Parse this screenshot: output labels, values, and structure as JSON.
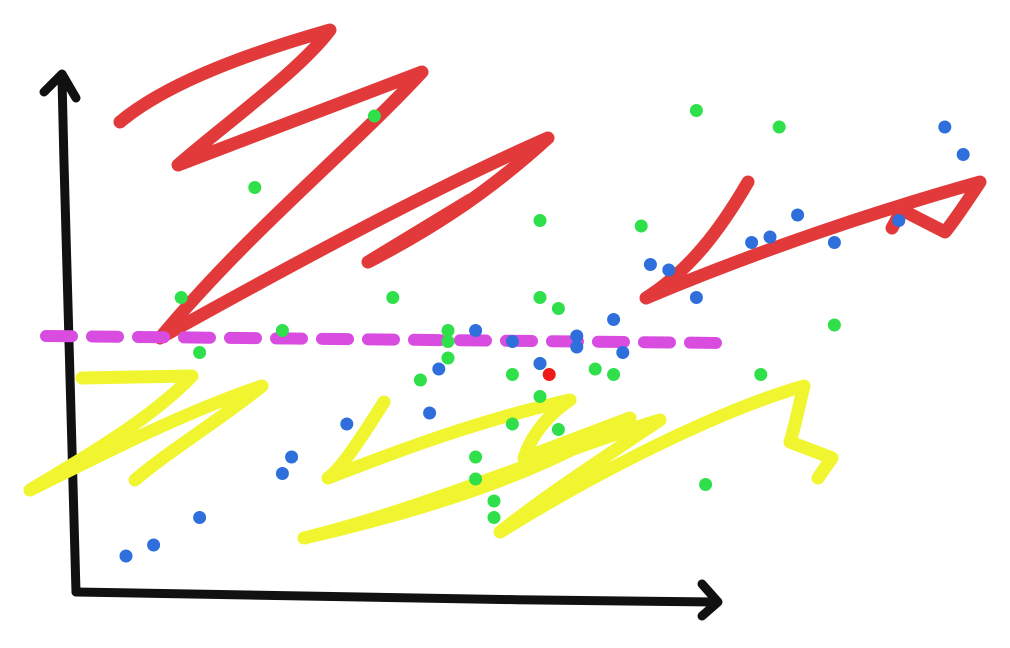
{
  "colors": {
    "background": "#ffffff",
    "axes": "#111111",
    "high_scribble": "#e23a3a",
    "low_scribble": "#f0f530",
    "threshold_line": "#d94ce0",
    "green_points": "#2fe04a",
    "blue_points": "#2f6fdc",
    "highlight_point": "#ee1a1a"
  },
  "icons": {
    "x_axis_arrowhead": "arrowhead-right-icon",
    "y_axis_arrowhead": "arrowhead-up-icon"
  },
  "chart_data": {
    "type": "scatter",
    "title": "",
    "xlabel": "",
    "ylabel": "",
    "legend": "none",
    "grid": false,
    "xlim": [
      0,
      100
    ],
    "ylim": [
      0,
      100
    ],
    "threshold": {
      "style": "dashed",
      "y": 48
    },
    "series": [
      {
        "color": "green",
        "x": [
          11,
          19,
          22,
          32,
          34,
          37,
          40,
          40,
          40,
          43,
          43,
          47,
          47,
          50,
          50,
          50,
          50,
          52,
          52,
          56,
          58,
          61,
          67,
          68,
          74,
          76,
          82,
          13,
          45,
          45
        ],
        "y": [
          55,
          75,
          49,
          88,
          55,
          40,
          49,
          47,
          44,
          26,
          22,
          41,
          32,
          55,
          69,
          43,
          37,
          53,
          31,
          42,
          41,
          68,
          89,
          21,
          41,
          86,
          50,
          45,
          15,
          18
        ]
      },
      {
        "color": "blue",
        "x": [
          5,
          8,
          13,
          22,
          23,
          29,
          38,
          39,
          43,
          47,
          50,
          54,
          54,
          58,
          59,
          62,
          64,
          67,
          73,
          75,
          78,
          82,
          89,
          94,
          96
        ],
        "y": [
          8,
          10,
          15,
          23,
          26,
          32,
          34,
          42,
          49,
          47,
          43,
          46,
          48,
          51,
          45,
          61,
          60,
          55,
          65,
          66,
          70,
          65,
          69,
          86,
          81
        ]
      },
      {
        "color": "red",
        "x": [
          51
        ],
        "y": [
          41
        ]
      }
    ]
  }
}
